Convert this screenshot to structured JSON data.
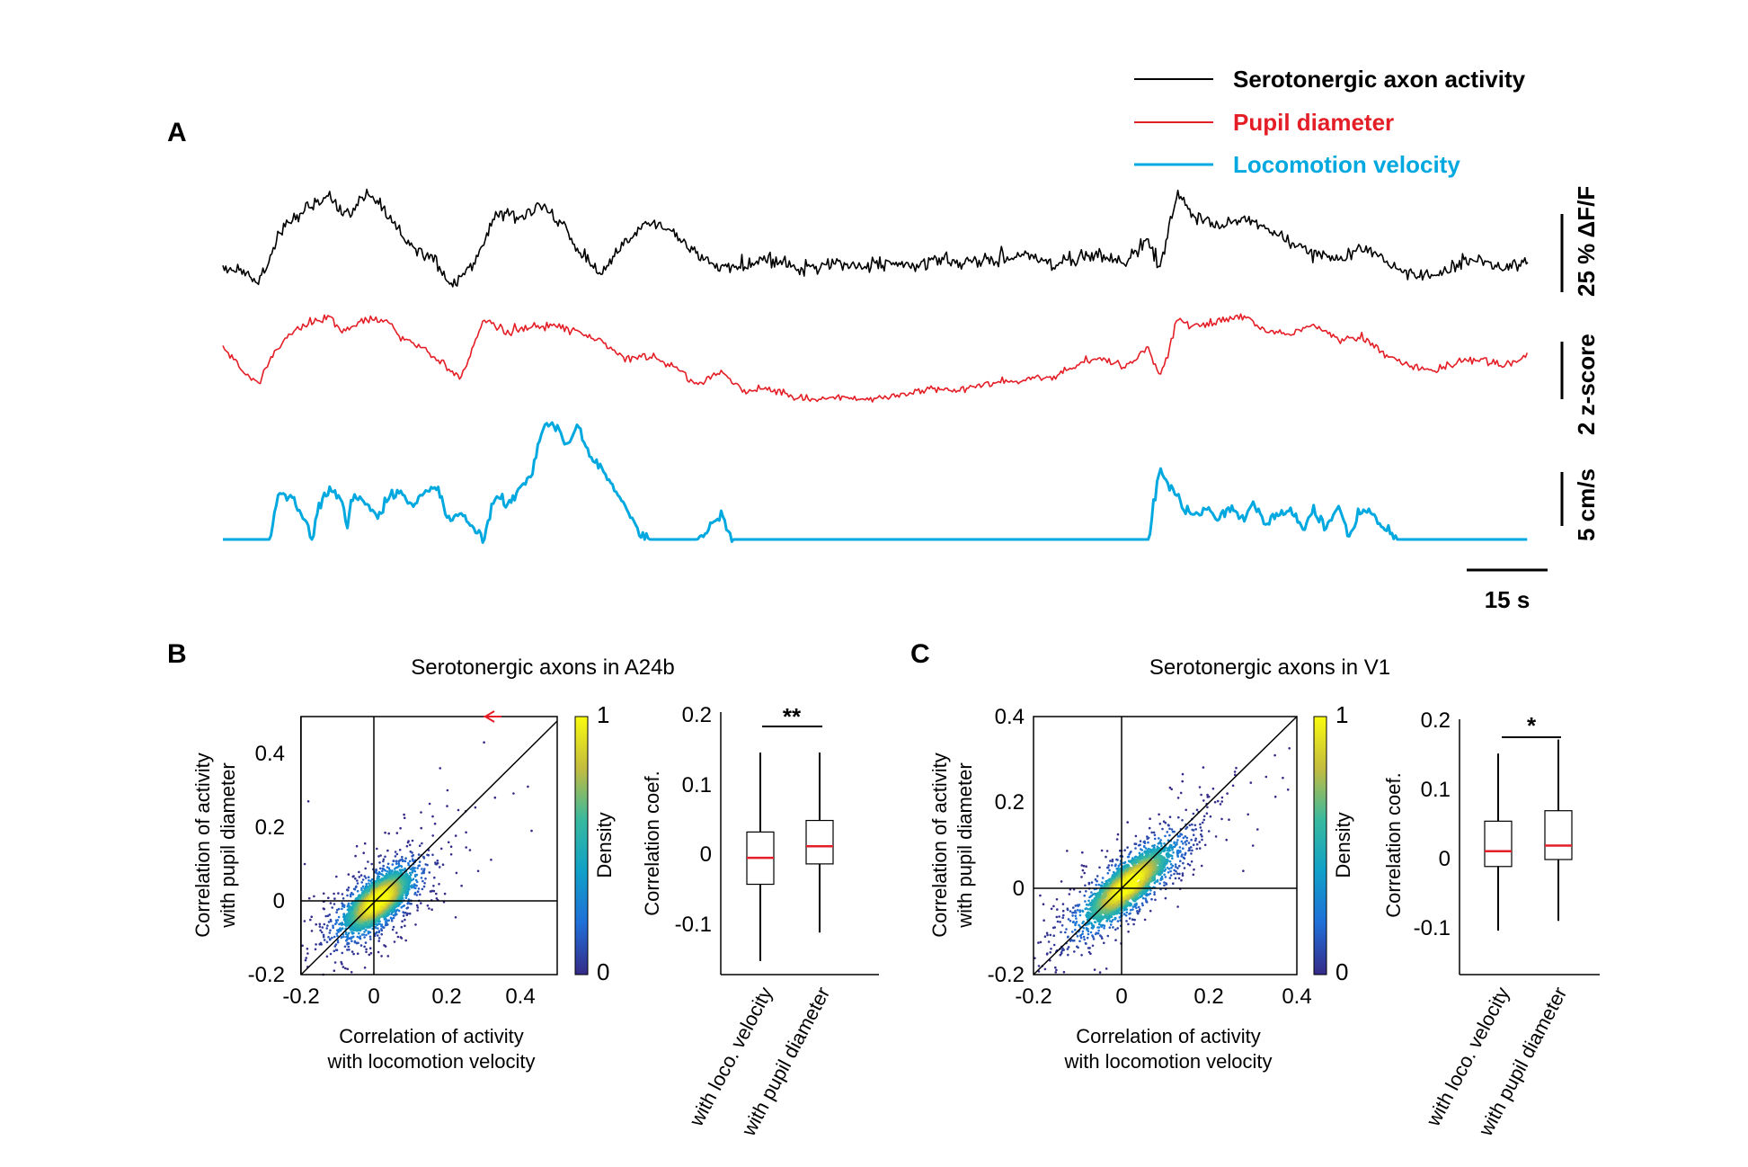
{
  "panel_labels": {
    "a": "A",
    "b": "B",
    "c": "C"
  },
  "chart_data": [
    {
      "panel": "A",
      "type": "line",
      "legend": [
        "Serotonergic axon activity",
        "Pupil diameter",
        "Locomotion velocity"
      ],
      "legend_placement": "top-right",
      "colors": [
        "#000000",
        "#e41e26",
        "#00a8e0"
      ],
      "scale_bars": {
        "activity": "25 % ΔF/F",
        "pupil": "2 z-score",
        "velocity": "5 cm/s",
        "time": "15 s"
      },
      "grid": false,
      "series": [
        {
          "name": "Serotonergic axon activity",
          "x_s": [
            0,
            3,
            6,
            10,
            14,
            18,
            21,
            24,
            27,
            30,
            33,
            36,
            38,
            42,
            46,
            50,
            54,
            57,
            60,
            64,
            68,
            72,
            76,
            80,
            84,
            88,
            92,
            96,
            100,
            104,
            108,
            112,
            116,
            120,
            124,
            128,
            132,
            136,
            140,
            144,
            148,
            152,
            156,
            158,
            161,
            164,
            168,
            172,
            176,
            180,
            184,
            188,
            192,
            196,
            200,
            204,
            208,
            212,
            216,
            220
          ],
          "y_rel": [
            0.1,
            0.06,
            0.0,
            0.34,
            0.5,
            0.56,
            0.45,
            0.58,
            0.5,
            0.33,
            0.2,
            0.15,
            -0.03,
            0.1,
            0.46,
            0.44,
            0.5,
            0.4,
            0.2,
            0.06,
            0.28,
            0.4,
            0.33,
            0.16,
            0.1,
            0.1,
            0.15,
            0.1,
            0.1,
            0.12,
            0.1,
            0.14,
            0.1,
            0.14,
            0.12,
            0.14,
            0.16,
            0.18,
            0.1,
            0.16,
            0.18,
            0.12,
            0.3,
            0.08,
            0.62,
            0.42,
            0.38,
            0.42,
            0.36,
            0.25,
            0.2,
            0.14,
            0.24,
            0.15,
            0.05,
            0.04,
            0.12,
            0.14,
            0.1,
            0.15
          ]
        },
        {
          "name": "Pupil diameter",
          "x_s": [
            0,
            3,
            6,
            8,
            11,
            14,
            18,
            20,
            23,
            27,
            30,
            33,
            36,
            40,
            44,
            48,
            52,
            56,
            60,
            64,
            68,
            72,
            76,
            80,
            84,
            88,
            92,
            96,
            100,
            104,
            108,
            112,
            116,
            120,
            124,
            128,
            132,
            136,
            140,
            144,
            148,
            152,
            156,
            158,
            161,
            164,
            168,
            172,
            176,
            180,
            184,
            188,
            192,
            196,
            200,
            204,
            208,
            212,
            216,
            220
          ],
          "y_rel": [
            0.52,
            0.36,
            0.28,
            0.44,
            0.6,
            0.68,
            0.74,
            0.62,
            0.7,
            0.72,
            0.6,
            0.52,
            0.45,
            0.3,
            0.72,
            0.62,
            0.66,
            0.68,
            0.64,
            0.56,
            0.44,
            0.46,
            0.4,
            0.26,
            0.36,
            0.22,
            0.24,
            0.18,
            0.16,
            0.18,
            0.16,
            0.18,
            0.2,
            0.24,
            0.22,
            0.26,
            0.28,
            0.3,
            0.32,
            0.4,
            0.46,
            0.38,
            0.52,
            0.3,
            0.72,
            0.66,
            0.7,
            0.74,
            0.64,
            0.62,
            0.68,
            0.58,
            0.6,
            0.48,
            0.4,
            0.36,
            0.42,
            0.44,
            0.4,
            0.46
          ]
        },
        {
          "name": "Locomotion velocity",
          "x_s": [
            0,
            4,
            8,
            9,
            10,
            12,
            14,
            15,
            16,
            18,
            20,
            21,
            22,
            24,
            26,
            28,
            30,
            32,
            34,
            36,
            38,
            40,
            44,
            46,
            48,
            50,
            52,
            54,
            56,
            58,
            60,
            62,
            64,
            66,
            68,
            70,
            72,
            74,
            76,
            80,
            84,
            86,
            88,
            90,
            120,
            150,
            156,
            158,
            160,
            162,
            164,
            166,
            168,
            170,
            172,
            174,
            176,
            178,
            180,
            182,
            184,
            186,
            188,
            190,
            192,
            194,
            196,
            198,
            200,
            204,
            220
          ],
          "y_rel": [
            0,
            0,
            0,
            1.5,
            1.9,
            1.5,
            0.8,
            0,
            1.2,
            2.0,
            1.5,
            0.6,
            1.8,
            1.5,
            0.9,
            1.7,
            1.9,
            1.3,
            1.9,
            2.2,
            0.8,
            1.0,
            0,
            1.8,
            1.4,
            2.0,
            2.6,
            4.5,
            4.6,
            3.8,
            4.5,
            3.2,
            2.8,
            2.0,
            1.2,
            0.3,
            0,
            0,
            0,
            0,
            0.9,
            0,
            0,
            0,
            0,
            0,
            0,
            2.9,
            2.0,
            1.2,
            1.0,
            1.2,
            0.8,
            1.3,
            0.7,
            1.4,
            0.6,
            1.0,
            1.2,
            0.4,
            1.2,
            0.5,
            1.3,
            0.2,
            1.2,
            1.0,
            0.4,
            0,
            0,
            0,
            0
          ]
        }
      ]
    },
    {
      "panel": "B",
      "type": "scatter",
      "title": "Serotonergic axons in A24b",
      "xlabel": [
        "Correlation of activity",
        "with locomotion velocity"
      ],
      "ylabel": [
        "Correlation of activity",
        "with pupil diameter"
      ],
      "xlim": [
        -0.2,
        0.5
      ],
      "ylim": [
        -0.2,
        0.5
      ],
      "xticks": [
        "-0.2",
        "0",
        "0.2",
        "0.4"
      ],
      "yticks": [
        "-0.2",
        "0",
        "0.2",
        "0.4"
      ],
      "colorbar": {
        "label": "Density",
        "min": "0",
        "max": "1"
      },
      "reference_lines": [
        "x=0",
        "y=0",
        "y=x"
      ],
      "cloud": {
        "center": [
          0.01,
          0.0
        ],
        "sd_x": 0.06,
        "sd_y": 0.055,
        "corr": 0.7,
        "n": 1400
      },
      "outliers": [
        [
          0.42,
          0.31
        ],
        [
          0.3,
          0.43
        ],
        [
          -0.18,
          0.27
        ],
        [
          -0.19,
          0.1
        ],
        [
          0.33,
          0.28
        ],
        [
          0.43,
          0.19
        ],
        [
          0.18,
          0.36
        ],
        [
          0.2,
          0.3
        ]
      ],
      "arrow_point": [
        0.31,
        0.5
      ],
      "grid": false
    },
    {
      "panel": "B",
      "type": "box",
      "ylabel": "Correlation coef.",
      "ylim": [
        -0.17,
        0.21
      ],
      "yticks": [
        "-0.1",
        "0",
        "0.1",
        "0.2"
      ],
      "categories": [
        "with loco. velocity",
        "with pupil diameter"
      ],
      "boxes": [
        {
          "whisker_low": -0.15,
          "q1": -0.037,
          "median": 0.002,
          "q3": 0.04,
          "whisker_high": 0.157
        },
        {
          "whisker_low": -0.108,
          "q1": -0.007,
          "median": 0.019,
          "q3": 0.057,
          "whisker_high": 0.157
        }
      ],
      "significance": "**",
      "grid": false
    },
    {
      "panel": "C",
      "type": "scatter",
      "title": "Serotonergic axons in V1",
      "xlabel": [
        "Correlation of activity",
        "with locomotion velocity"
      ],
      "ylabel": [
        "Correlation of activity",
        "with pupil diameter"
      ],
      "xlim": [
        -0.2,
        0.4
      ],
      "ylim": [
        -0.2,
        0.4
      ],
      "xticks": [
        "-0.2",
        "0",
        "0.2",
        "0.4"
      ],
      "yticks": [
        "-0.2",
        "0",
        "0.2",
        "0.4"
      ],
      "colorbar": {
        "label": "Density",
        "min": "0",
        "max": "1"
      },
      "reference_lines": [
        "x=0",
        "y=0",
        "y=x"
      ],
      "cloud": {
        "center": [
          0.015,
          0.008
        ],
        "sd_x": 0.065,
        "sd_y": 0.06,
        "corr": 0.82,
        "n": 1400
      },
      "outliers": [
        [
          -0.18,
          -0.18
        ],
        [
          -0.16,
          -0.14
        ],
        [
          0.35,
          0.31
        ],
        [
          0.38,
          0.23
        ],
        [
          0.3,
          0.1
        ],
        [
          0.33,
          0.26
        ]
      ],
      "grid": false
    },
    {
      "panel": "C",
      "type": "box",
      "ylabel": "Correlation coef.",
      "ylim": [
        -0.16,
        0.21
      ],
      "yticks": [
        "-0.1",
        "0",
        "0.1",
        "0.2"
      ],
      "categories": [
        "with loco. velocity",
        "with pupil diameter"
      ],
      "boxes": [
        {
          "whisker_low": -0.097,
          "q1": -0.005,
          "median": 0.017,
          "q3": 0.06,
          "whisker_high": 0.157
        },
        {
          "whisker_low": -0.083,
          "q1": 0.005,
          "median": 0.025,
          "q3": 0.075,
          "whisker_high": 0.177
        }
      ],
      "significance": "*",
      "grid": false
    }
  ]
}
